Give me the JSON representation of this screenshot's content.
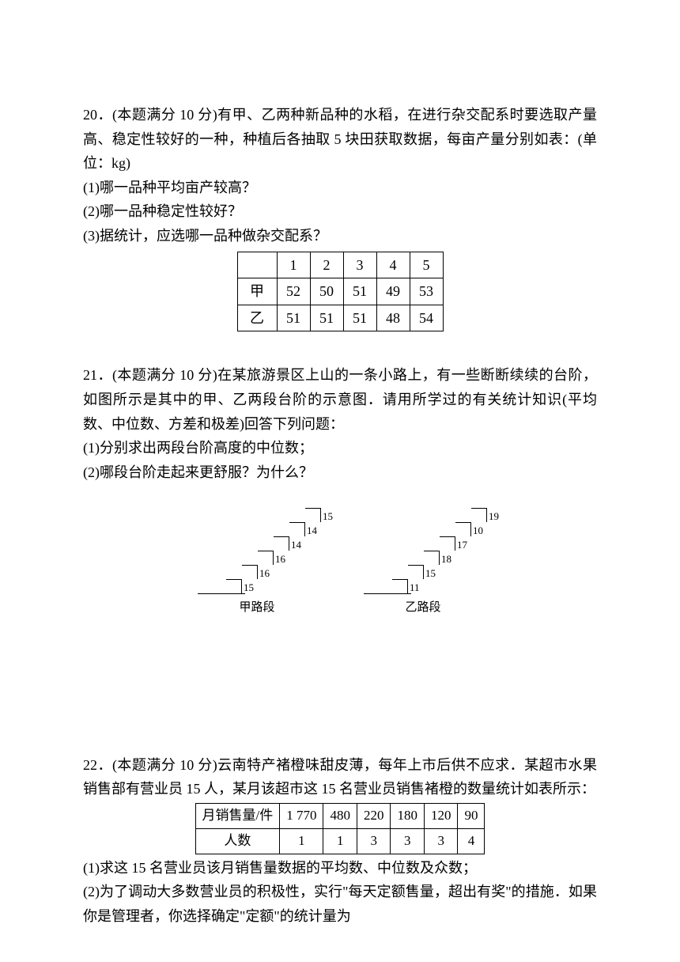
{
  "q20": {
    "intro": "20．(本题满分 10 分)有甲、乙两种新品种的水稻，在进行杂交配系时要选取产量高、稳定性较好的一种，种植后各抽取 5 块田获取数据，每亩产量分别如表：(单位：kg)",
    "p1": "(1)哪一品种平均亩产较高？",
    "p2": "(2)哪一品种稳定性较好？",
    "p3": "(3)据统计，应选哪一品种做杂交配系？",
    "table": {
      "header": [
        "",
        "1",
        "2",
        "3",
        "4",
        "5"
      ],
      "row_jia_label": "甲",
      "row_jia": [
        "52",
        "50",
        "51",
        "49",
        "53"
      ],
      "row_yi_label": "乙",
      "row_yi": [
        "51",
        "51",
        "51",
        "48",
        "54"
      ]
    }
  },
  "q21": {
    "intro": "21．(本题满分 10 分)在某旅游景区上山的一条小路上，有一些断断续续的台阶，如图所示是其中的甲、乙两段台阶的示意图．请用所学过的有关统计知识(平均数、中位数、方差和极差)回答下列问题：",
    "p1": "(1)分别求出两段台阶高度的中位数；",
    "p2": "(2)哪段台阶走起来更舒服？为什么？",
    "jia_label": "甲路段",
    "yi_label": "乙路段",
    "jia_steps": [
      "15",
      "16",
      "16",
      "14",
      "14",
      "15"
    ],
    "yi_steps": [
      "11",
      "15",
      "18",
      "17",
      "10",
      "19"
    ],
    "diagram": {
      "step_width": 20,
      "step_height": 18,
      "label_fontsize": 13,
      "line_color": "#000000"
    }
  },
  "q22": {
    "intro": "22．(本题满分 10 分)云南特产褚橙味甜皮薄，每年上市后供不应求．某超市水果销售部有营业员 15 人，某月该超市这 15 名营业员销售褚橙的数量统计如表所示：",
    "table": {
      "row1_label": "月销售量/件",
      "row1": [
        "1 770",
        "480",
        "220",
        "180",
        "120",
        "90"
      ],
      "row2_label": "人数",
      "row2": [
        "1",
        "1",
        "3",
        "3",
        "3",
        "4"
      ]
    },
    "p1": "(1)求这 15 名营业员该月销售量数据的平均数、中位数及众数；",
    "p2": "(2)为了调动大多数营业员的积极性，实行\"每天定额售量，超出有奖\"的措施．如果你是管理者，你选择确定\"定额\"的统计量为"
  }
}
